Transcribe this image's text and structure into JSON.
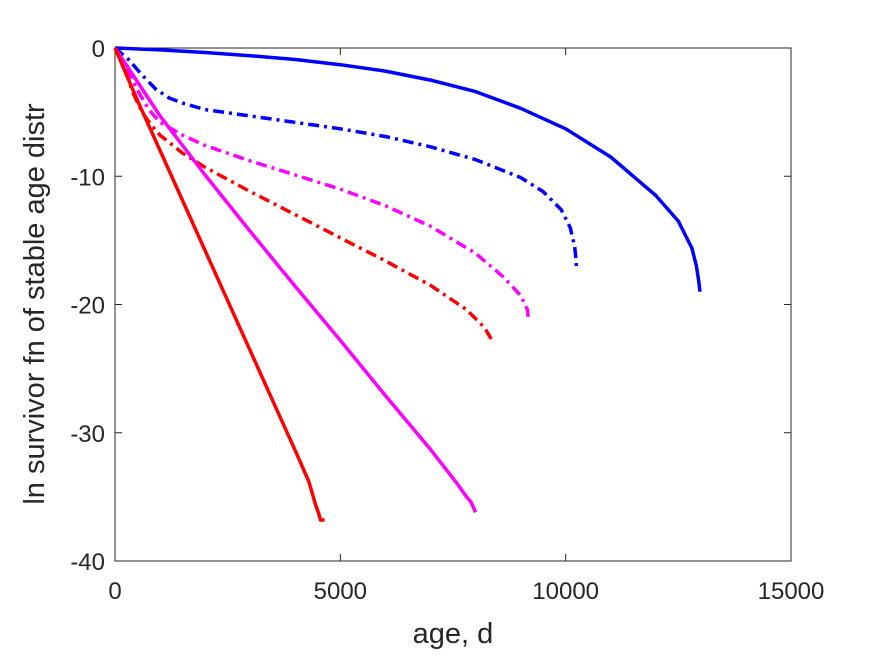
{
  "chart_data": {
    "type": "line",
    "title": "",
    "xlabel": "age, d",
    "ylabel": "ln survivor fn of stable age distr",
    "xlim": [
      0,
      15000
    ],
    "ylim": [
      -40,
      0
    ],
    "x_ticks": [
      0,
      5000,
      10000,
      15000
    ],
    "x_tick_labels": [
      "0",
      "5000",
      "10000",
      "15000"
    ],
    "y_ticks": [
      0,
      -10,
      -20,
      -30,
      -40
    ],
    "y_tick_labels": [
      "0",
      "-10",
      "-20",
      "-30",
      "-40"
    ],
    "grid": false,
    "series": [
      {
        "color": "#0000ff",
        "style": "solid",
        "points": [
          [
            0,
            0
          ],
          [
            1000,
            -0.15
          ],
          [
            2000,
            -0.35
          ],
          [
            3000,
            -0.6
          ],
          [
            4000,
            -0.9
          ],
          [
            5000,
            -1.3
          ],
          [
            6000,
            -1.8
          ],
          [
            7000,
            -2.5
          ],
          [
            8000,
            -3.4
          ],
          [
            9000,
            -4.7
          ],
          [
            10000,
            -6.3
          ],
          [
            11000,
            -8.5
          ],
          [
            12000,
            -11.5
          ],
          [
            12500,
            -13.5
          ],
          [
            12800,
            -15.6
          ],
          [
            12900,
            -17.0
          ],
          [
            12950,
            -18.1
          ],
          [
            12980,
            -19.0
          ]
        ]
      },
      {
        "color": "#0000ff",
        "style": "dashdot",
        "points": [
          [
            0,
            0
          ],
          [
            300,
            -0.9
          ],
          [
            600,
            -2.1
          ],
          [
            900,
            -3.2
          ],
          [
            1200,
            -3.9
          ],
          [
            1500,
            -4.3
          ],
          [
            2000,
            -4.8
          ],
          [
            3000,
            -5.3
          ],
          [
            4000,
            -5.8
          ],
          [
            5000,
            -6.3
          ],
          [
            6000,
            -6.9
          ],
          [
            7000,
            -7.7
          ],
          [
            8000,
            -8.7
          ],
          [
            9000,
            -10.1
          ],
          [
            9500,
            -11.2
          ],
          [
            9900,
            -12.6
          ],
          [
            10100,
            -14.0
          ],
          [
            10200,
            -15.5
          ],
          [
            10230,
            -16.5
          ],
          [
            10240,
            -17.3
          ]
        ]
      },
      {
        "color": "#ff00ff",
        "style": "dashdot",
        "points": [
          [
            0,
            0
          ],
          [
            250,
            -1.5
          ],
          [
            500,
            -3.3
          ],
          [
            750,
            -4.8
          ],
          [
            1000,
            -5.8
          ],
          [
            1500,
            -6.8
          ],
          [
            2000,
            -7.6
          ],
          [
            3000,
            -8.8
          ],
          [
            4000,
            -9.9
          ],
          [
            5000,
            -11.0
          ],
          [
            6000,
            -12.3
          ],
          [
            7000,
            -13.9
          ],
          [
            8000,
            -16.0
          ],
          [
            8600,
            -17.8
          ],
          [
            9000,
            -19.3
          ],
          [
            9150,
            -20.4
          ],
          [
            9180,
            -21.3
          ]
        ]
      },
      {
        "color": "#ff0000",
        "style": "dashdot",
        "points": [
          [
            0,
            0
          ],
          [
            200,
            -1.5
          ],
          [
            400,
            -3.5
          ],
          [
            600,
            -5.0
          ],
          [
            800,
            -6.0
          ],
          [
            1000,
            -6.8
          ],
          [
            1500,
            -8.2
          ],
          [
            2000,
            -9.3
          ],
          [
            3000,
            -11.2
          ],
          [
            4000,
            -13.0
          ],
          [
            5000,
            -14.8
          ],
          [
            6000,
            -16.6
          ],
          [
            7000,
            -18.5
          ],
          [
            7800,
            -20.4
          ],
          [
            8200,
            -21.8
          ],
          [
            8400,
            -23.0
          ]
        ]
      },
      {
        "color": "#ff00ff",
        "style": "solid",
        "points": [
          [
            0,
            0
          ],
          [
            1000,
            -5.3
          ],
          [
            2000,
            -9.9
          ],
          [
            3000,
            -14.3
          ],
          [
            4000,
            -18.6
          ],
          [
            5000,
            -22.8
          ],
          [
            6000,
            -27.1
          ],
          [
            7000,
            -31.3
          ],
          [
            7600,
            -34.0
          ],
          [
            7800,
            -35.0
          ],
          [
            7900,
            -35.4
          ],
          [
            7950,
            -35.8
          ],
          [
            8000,
            -36.2
          ]
        ]
      },
      {
        "color": "#ff0000",
        "style": "solid",
        "points": [
          [
            0,
            0
          ],
          [
            500,
            -4.1
          ],
          [
            1000,
            -8.0
          ],
          [
            1500,
            -11.9
          ],
          [
            2000,
            -15.8
          ],
          [
            2500,
            -19.7
          ],
          [
            3000,
            -23.6
          ],
          [
            3500,
            -27.5
          ],
          [
            4000,
            -31.4
          ],
          [
            4300,
            -33.8
          ],
          [
            4400,
            -35.0
          ],
          [
            4450,
            -35.6
          ],
          [
            4520,
            -36.3
          ],
          [
            4560,
            -36.8
          ],
          [
            4650,
            -36.8
          ]
        ]
      }
    ]
  }
}
